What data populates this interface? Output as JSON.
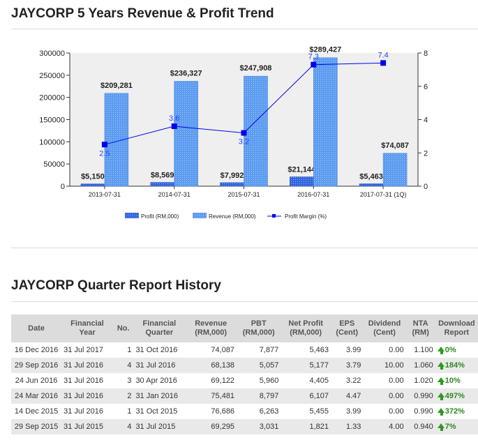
{
  "chart_title": "JAYCORP 5 Years Revenue & Profit Trend",
  "chart_data": {
    "type": "bar",
    "categories": [
      "2013-07-31",
      "2014-07-31",
      "2015-07-31",
      "2016-07-31",
      "2017-07-31 (1Q)"
    ],
    "series": [
      {
        "name": "Profit (RM,000)",
        "values": [
          5150,
          8569,
          7992,
          21144,
          5463
        ],
        "labels": [
          "$5,150",
          "$8,569",
          "$7,992",
          "$21,144",
          "$5,463"
        ],
        "color": "#3366dd"
      },
      {
        "name": "Revenue (RM,000)",
        "values": [
          209281,
          236327,
          247908,
          289427,
          74087
        ],
        "labels": [
          "$209,281",
          "$236,327",
          "$247,908",
          "$289,427",
          "$74,087"
        ],
        "color": "#5b9bf0"
      },
      {
        "name": "Profit Margin (%)",
        "values": [
          2.5,
          3.6,
          3.2,
          7.3,
          7.4
        ],
        "labels": [
          "2.5",
          "3.6",
          "3.2",
          "7.3",
          "7.4"
        ],
        "color": "#0000ee"
      }
    ],
    "y_left": {
      "ticks": [
        "300000",
        "250000",
        "200000",
        "150000",
        "100000",
        "50000",
        "0"
      ],
      "ylim": [
        0,
        300000
      ]
    },
    "y_right": {
      "ticks": [
        "8",
        "6",
        "4",
        "2",
        "0"
      ],
      "ylim": [
        0,
        8
      ]
    },
    "legend": [
      "Profit (RM,000)",
      "Revenue (RM,000)",
      "Profit Margin (%)"
    ],
    "legend_position": "bottom"
  },
  "table_title": "JAYCORP Quarter Report History",
  "table": {
    "headers": [
      "Date",
      "Financial Year",
      "No.",
      "Financial Quarter",
      "Revenue (RM,000)",
      "PBT (RM,000)",
      "Net Profit (RM,000)",
      "EPS (Cent)",
      "Dividend (Cent)",
      "NTA (RM)",
      "Download Report"
    ],
    "rows": [
      [
        "16 Dec 2016",
        "31 Jul 2017",
        "1",
        "31 Oct 2016",
        "74,087",
        "7,877",
        "5,463",
        "3.99",
        "0.00",
        "1.100",
        "0%"
      ],
      [
        "29 Sep 2016",
        "31 Jul 2016",
        "4",
        "31 Jul 2016",
        "68,138",
        "5,057",
        "5,177",
        "3.79",
        "10.00",
        "1.060",
        "184%"
      ],
      [
        "24 Jun 2016",
        "31 Jul 2016",
        "3",
        "30 Apr 2016",
        "69,122",
        "5,960",
        "4,405",
        "3.22",
        "0.00",
        "1.020",
        "10%"
      ],
      [
        "24 Mar 2016",
        "31 Jul 2016",
        "2",
        "31 Jan 2016",
        "75,481",
        "8,797",
        "6,107",
        "4.47",
        "0.00",
        "0.990",
        "497%"
      ],
      [
        "14 Dec 2015",
        "31 Jul 2016",
        "1",
        "31 Oct 2015",
        "76,686",
        "6,263",
        "5,455",
        "3.99",
        "0.00",
        "0.990",
        "372%"
      ],
      [
        "29 Sep 2015",
        "31 Jul 2015",
        "4",
        "31 Jul 2015",
        "69,295",
        "3,031",
        "1,821",
        "1.33",
        "4.00",
        "0.940",
        "7%"
      ]
    ]
  },
  "colors": {
    "accent_green": "#2d8a1e",
    "header_bg": "#dcdcdc",
    "alt_row": "#e9e9e9"
  }
}
